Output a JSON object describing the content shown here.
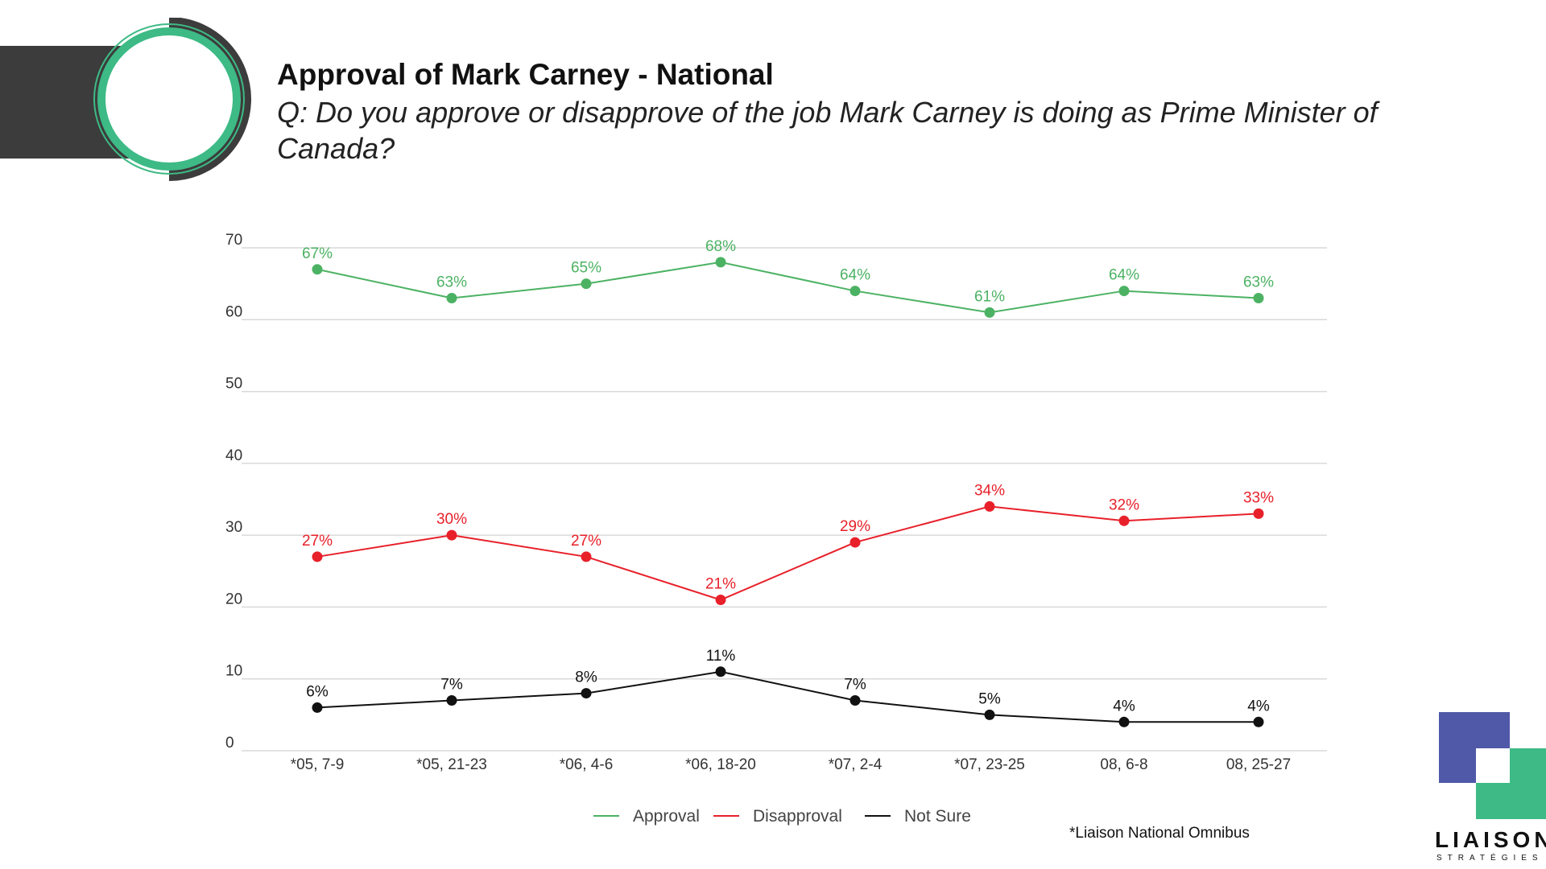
{
  "header": {
    "title": "Approval of Mark Carney - National",
    "question": "Q: Do you approve or disapprove of the job Mark Carney is doing as Prime Minister of Canada?"
  },
  "footnote": "*Liaison National Omnibus",
  "logo": {
    "word": "LIAISON",
    "sub": "STRATÉGIES"
  },
  "colors": {
    "approval": "#4cb263",
    "disapproval": "#e8202a",
    "not_sure": "#111111",
    "grid": "#d9d9d9",
    "brand_green": "#3dba85",
    "brand_purple": "#5058a8",
    "dark": "#3c3c3c"
  },
  "chart_data": {
    "type": "line",
    "categories": [
      "*05, 7-9",
      "*05, 21-23",
      "*06, 4-6",
      "*06, 18-20",
      "*07, 2-4",
      "*07, 23-25",
      "08, 6-8",
      "08, 25-27"
    ],
    "series": [
      {
        "name": "Approval",
        "values": [
          67,
          63,
          65,
          68,
          64,
          61,
          64,
          63
        ],
        "labels": [
          "67%",
          "63%",
          "65%",
          "68%",
          "64%",
          "61%",
          "64%",
          "63%"
        ]
      },
      {
        "name": "Disapproval",
        "values": [
          27,
          30,
          27,
          21,
          29,
          34,
          32,
          33
        ],
        "labels": [
          "27%",
          "30%",
          "27%",
          "21%",
          "29%",
          "34%",
          "32%",
          "33%"
        ]
      },
      {
        "name": "Not Sure",
        "values": [
          6,
          7,
          8,
          11,
          7,
          5,
          4,
          4
        ],
        "labels": [
          "6%",
          "7%",
          "8%",
          "11%",
          "7%",
          "5%",
          "4%",
          "4%"
        ]
      }
    ],
    "ylim": [
      0,
      70
    ],
    "yticks": [
      "0",
      "10",
      "20",
      "30",
      "40",
      "50",
      "60",
      "70"
    ],
    "grid": true,
    "legend_position": "bottom"
  }
}
